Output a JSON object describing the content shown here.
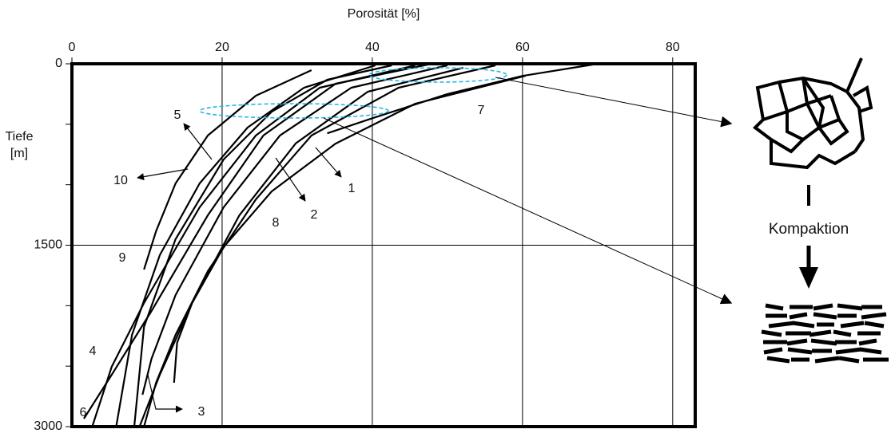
{
  "chart_data": {
    "type": "line",
    "xlabel": "Porosität [%]",
    "ylabel": [
      "Tiefe",
      "[m]"
    ],
    "annotation": "Kompaktion",
    "xlim": [
      0,
      83
    ],
    "xticks": [
      0,
      20,
      40,
      60,
      80
    ],
    "ylim": [
      0,
      3000
    ],
    "yticks": [
      0,
      1500,
      3000
    ],
    "yminorticks": [
      500,
      1000,
      2000,
      2500
    ],
    "inverted_y": true,
    "grid": true,
    "series": [
      {
        "name": "1",
        "color": "#000000",
        "x": [
          56.4,
          43.5,
          31.9,
          24.5,
          18.1,
          13.8,
          11.2,
          9.6
        ],
        "values": [
          13,
          198,
          593,
          1121,
          1714,
          2241,
          2637,
          3000
        ]
      },
      {
        "name": "2",
        "color": "#000000",
        "x": [
          52.1,
          39.4,
          29.8,
          22.3,
          16,
          11.7,
          9
        ],
        "values": [
          33,
          231,
          659,
          1252,
          1978,
          2571,
          3000
        ]
      },
      {
        "name": "3",
        "color": "#000000",
        "x": [
          50,
          37.2,
          27.7,
          20.2,
          13.8,
          10.6,
          9.4
        ],
        "values": [
          13,
          198,
          593,
          1187,
          1912,
          2439,
          2736
        ]
      },
      {
        "name": "4",
        "color": "#000000",
        "x": [
          47.9,
          35.1,
          25.5,
          18.1,
          10.6,
          5.3,
          1.6
        ],
        "values": [
          0,
          165,
          593,
          1252,
          2044,
          2571,
          2934
        ]
      },
      {
        "name": "5",
        "color": "#000000",
        "x": [
          40.4,
          30.9,
          23.4,
          17,
          11.7,
          8,
          5.9
        ],
        "values": [
          13,
          198,
          527,
          989,
          1582,
          2241,
          3000
        ]
      },
      {
        "name": "6",
        "color": "#000000",
        "x": [
          45.7,
          33,
          24.5,
          17,
          9.6,
          5.3,
          2.7
        ],
        "values": [
          13,
          198,
          593,
          1187,
          1978,
          2505,
          3000
        ]
      },
      {
        "name": "7",
        "color": "#000000",
        "x": [
          70,
          60,
          50,
          40,
          34
        ],
        "values": [
          0,
          100,
          250,
          450,
          575
        ]
      },
      {
        "name": "8",
        "color": "#000000",
        "x": [
          60.4,
          45.7,
          35.1,
          26.6,
          20.2,
          16,
          14,
          13.6
        ],
        "values": [
          99,
          330,
          660,
          1055,
          1516,
          1978,
          2307,
          2637
        ]
      },
      {
        "name": "9",
        "color": "#000000",
        "x": [
          31.9,
          24.5,
          18.1,
          13.8,
          11.2,
          9.6
        ],
        "values": [
          53,
          264,
          593,
          989,
          1384,
          1701
        ]
      },
      {
        "name": "10",
        "color": "#000000",
        "x": [
          42.6,
          34,
          26.6,
          20.2,
          13.8,
          9.6,
          8.3
        ],
        "values": [
          13,
          132,
          396,
          791,
          1450,
          2175,
          3000
        ]
      }
    ]
  }
}
